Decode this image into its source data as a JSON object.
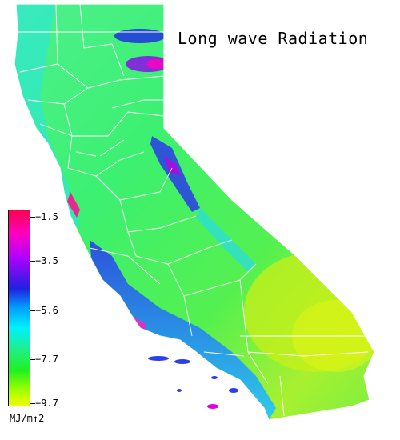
{
  "title": "Long wave Radiation",
  "legend": {
    "ticks": [
      "−1.5",
      "−3.5",
      "−5.6",
      "−7.7",
      "−9.7"
    ],
    "units": "MJ/m↑2",
    "colors": {
      "max": "#ff0066",
      "magenta": "#e600e6",
      "blue": "#2020e0",
      "cyan": "#00e0ff",
      "green": "#20f060",
      "yellow": "#e0ff00"
    }
  },
  "map": {
    "region": "California",
    "county_border_color": "#ffffff",
    "dominant_fill": "#33f06a"
  }
}
